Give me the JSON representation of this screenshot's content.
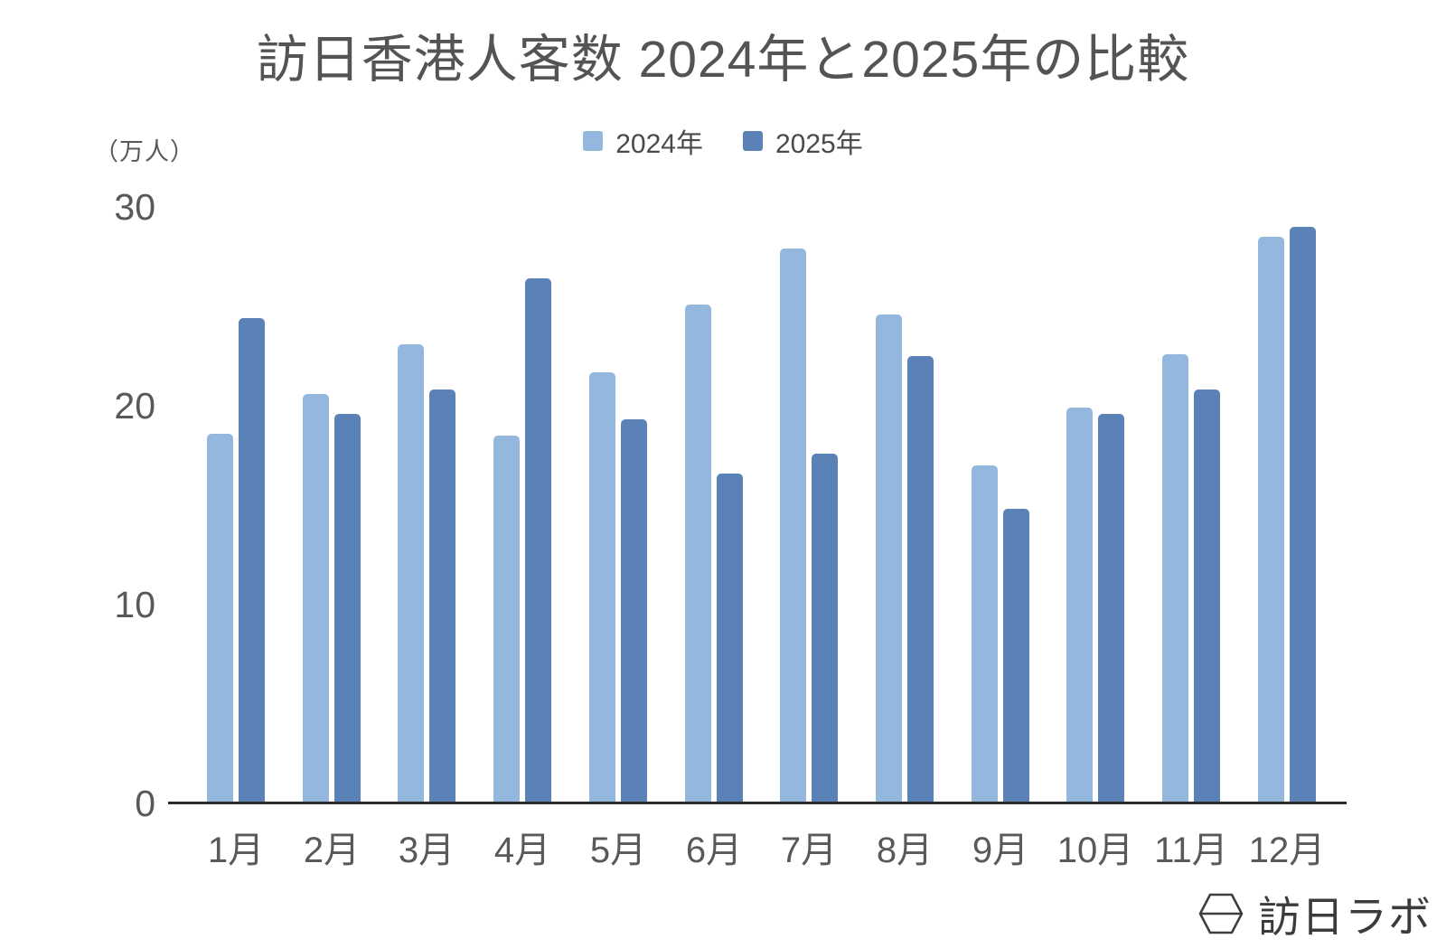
{
  "chart_data": {
    "type": "bar",
    "title": "訪日香港人客数 2024年と2025年の比較",
    "y_axis_unit": "（万人）",
    "categories": [
      "1月",
      "2月",
      "3月",
      "4月",
      "5月",
      "6月",
      "7月",
      "8月",
      "9月",
      "10月",
      "11月",
      "12月"
    ],
    "series": [
      {
        "name": "2024年",
        "color": "#94b8dd",
        "values": [
          18.6,
          20.6,
          23.1,
          18.5,
          21.7,
          25.1,
          27.9,
          24.6,
          17.0,
          19.9,
          22.6,
          28.5
        ]
      },
      {
        "name": "2025年",
        "color": "#5a82b7",
        "values": [
          24.4,
          19.6,
          20.8,
          26.4,
          19.3,
          16.6,
          17.6,
          22.5,
          14.8,
          19.6,
          20.8,
          29.0
        ]
      }
    ],
    "y_ticks": [
      30,
      20,
      10,
      0
    ],
    "ylim": [
      0,
      30
    ],
    "grid": false,
    "legend_position": "top-center"
  },
  "branding": {
    "logo_text": "訪日ラボ",
    "logo_icon": "hexagon-box-icon"
  },
  "colors": {
    "axis_line": "#2d2d2d",
    "title_text": "#545454",
    "axis_text": "#595959",
    "logo_text": "#3b3b3b"
  }
}
